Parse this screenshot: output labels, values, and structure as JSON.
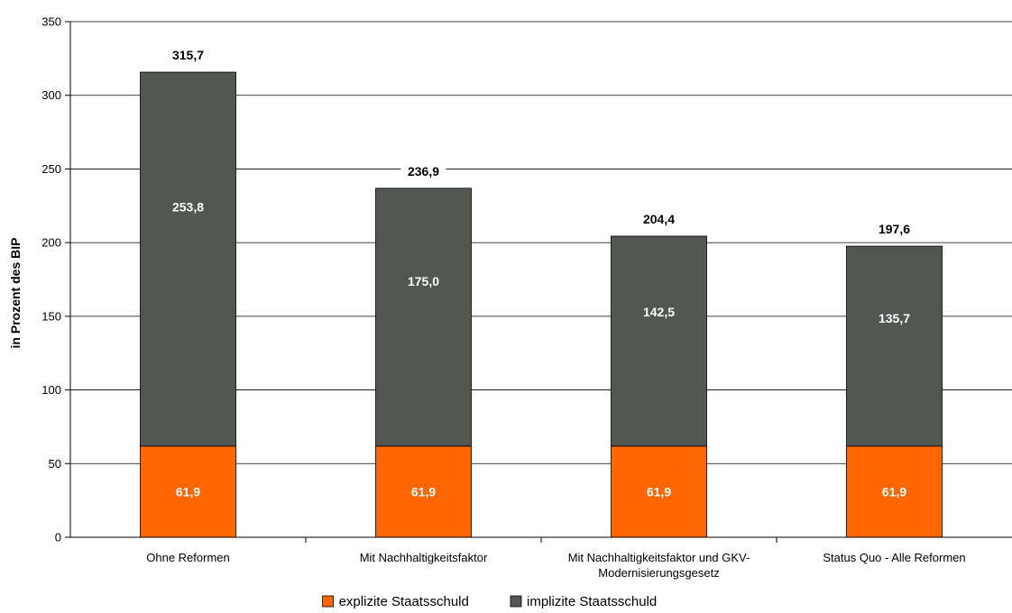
{
  "chart_data": {
    "type": "bar",
    "stacked": true,
    "title": "",
    "xlabel": "",
    "ylabel": "in Prozent des BIP",
    "ylim": [
      0,
      350
    ],
    "yticks": [
      0,
      50,
      100,
      150,
      200,
      250,
      300,
      350
    ],
    "grid": true,
    "legend_position": "bottom",
    "categories": [
      [
        "Ohne Reformen"
      ],
      [
        "Mit Nachhaltigkeitsfaktor"
      ],
      [
        "Mit Nachhaltigkeitsfaktor und GKV-",
        "Modernisierungsgesetz"
      ],
      [
        "Status Quo - Alle Reformen"
      ]
    ],
    "series": [
      {
        "name": "explizite Staatsschuld",
        "color": "#ff6600",
        "values": [
          61.9,
          61.9,
          61.9,
          61.9
        ],
        "labels": [
          "61,9",
          "61,9",
          "61,9",
          "61,9"
        ]
      },
      {
        "name": "implizite Staatsschuld",
        "color": "#525752",
        "values": [
          253.8,
          175.0,
          142.5,
          135.7
        ],
        "labels": [
          "253,8",
          "175,0",
          "142,5",
          "135,7"
        ]
      }
    ],
    "totals": [
      315.7,
      236.9,
      204.4,
      197.6
    ],
    "total_labels": [
      "315,7",
      "236,9",
      "204,4",
      "197,6"
    ]
  }
}
